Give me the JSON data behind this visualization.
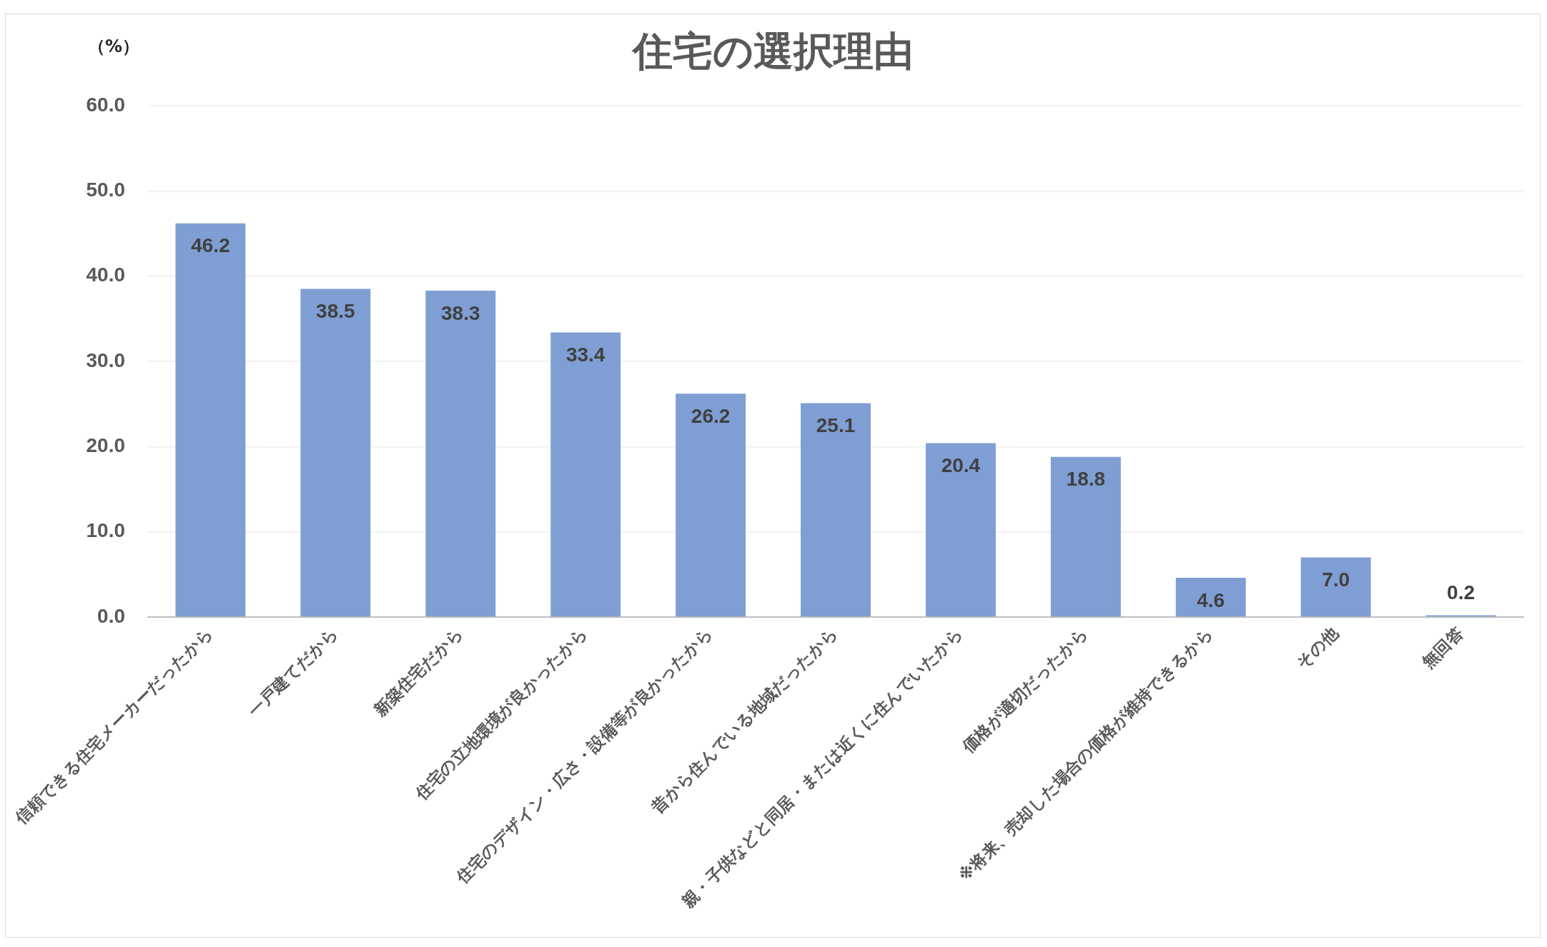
{
  "chart_data": {
    "type": "bar",
    "title": "住宅の選択理由",
    "ylabel": "（%）",
    "categories": [
      "信頼できる住宅メーカーだったから",
      "一戸建てだから",
      "新築住宅だから",
      "住宅の立地環境が良かったから",
      "住宅のデザイン・広さ・設備等が良かったから",
      "昔から住んでいる地域だったから",
      "親・子供などと同居・または近くに住んでいたから",
      "価格が適切だったから",
      "※将来、売却した場合の価格が維持できるから",
      "その他",
      "無回答"
    ],
    "values": [
      46.2,
      38.5,
      38.3,
      33.4,
      26.2,
      25.1,
      20.4,
      18.8,
      4.6,
      7.0,
      0.2
    ],
    "value_labels": [
      "46.2",
      "38.5",
      "38.3",
      "33.4",
      "26.2",
      "25.1",
      "20.4",
      "18.8",
      "4.6",
      "7.0",
      "0.2"
    ],
    "color": "#7f9fd4",
    "ylim": [
      0,
      60
    ],
    "yticks": [
      {
        "value": 0,
        "label": "0.0"
      },
      {
        "value": 10,
        "label": "10.0"
      },
      {
        "value": 20,
        "label": "20.0"
      },
      {
        "value": 30,
        "label": "30.0"
      },
      {
        "value": 40,
        "label": "40.0"
      },
      {
        "value": 50,
        "label": "50.0"
      },
      {
        "value": 60,
        "label": "60.0"
      }
    ],
    "grid": "y"
  }
}
